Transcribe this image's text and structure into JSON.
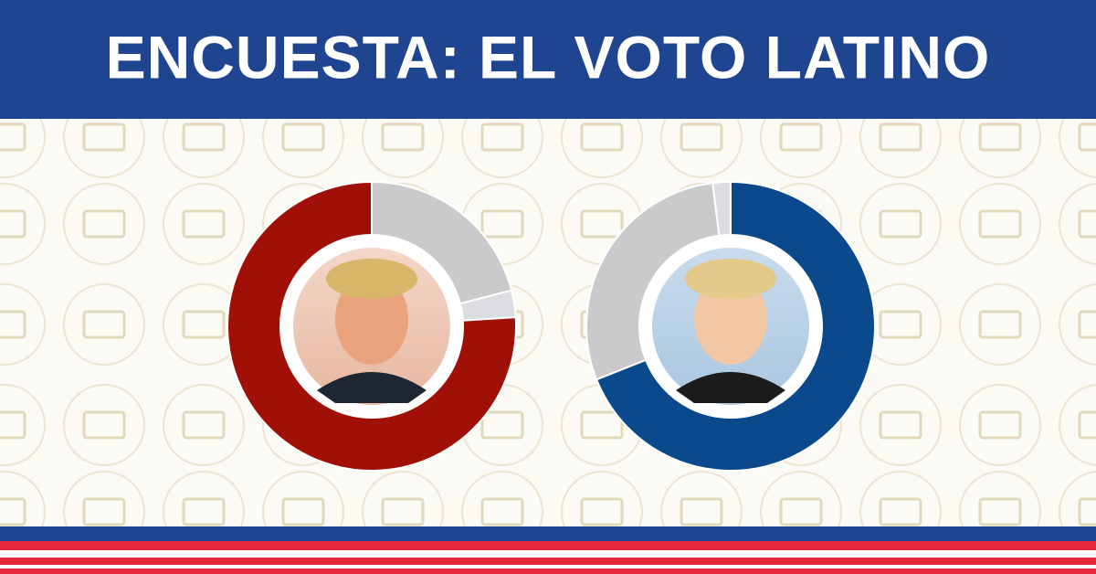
{
  "header": {
    "title": "ENCUESTA: EL VOTO LATINO"
  },
  "chart_data": [
    {
      "type": "pie",
      "values": [
        21,
        3,
        76
      ],
      "colors": [
        "#c9cacc",
        "#dcdde0",
        "#a01006"
      ]
    },
    {
      "type": "pie",
      "values": [
        69,
        29,
        2
      ],
      "colors": [
        "#0a4a8c",
        "#c9cacc",
        "#dcdde0"
      ]
    }
  ]
}
